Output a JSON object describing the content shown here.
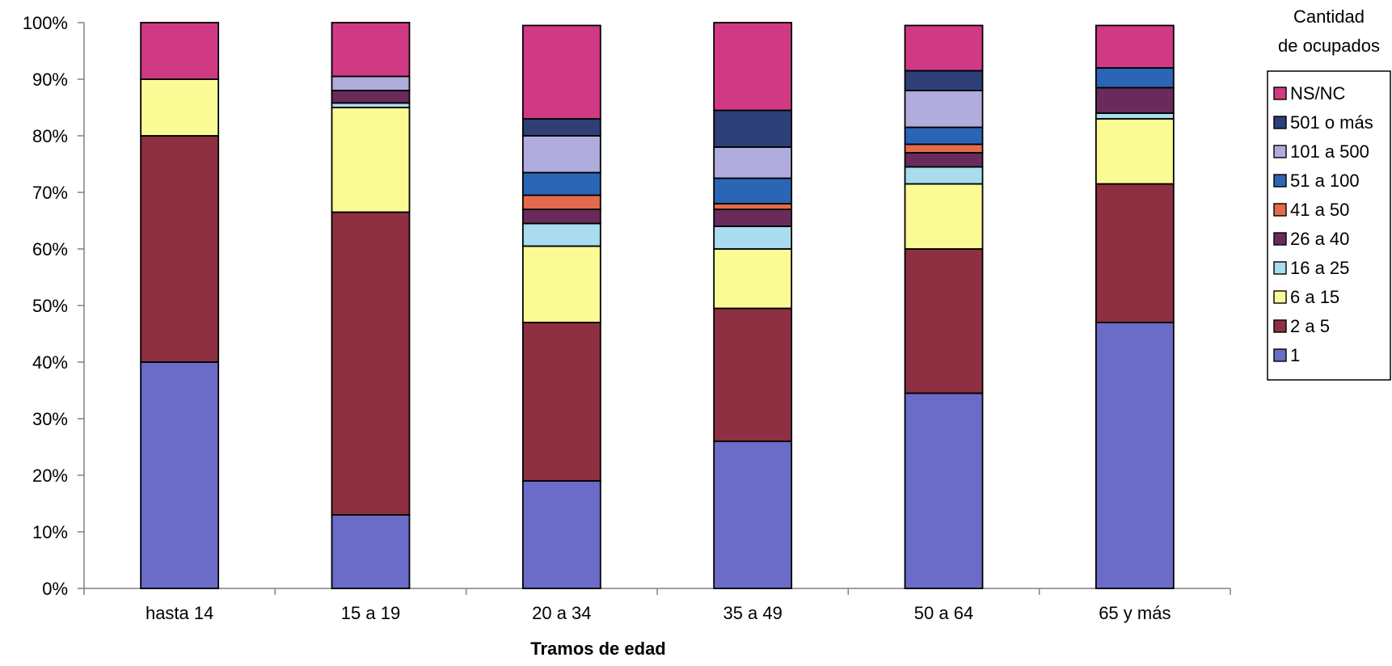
{
  "chart_data": {
    "type": "bar",
    "stacked": true,
    "percent_stacked": true,
    "xlabel": "Tramos de edad",
    "ylabel": "",
    "ylim": [
      0,
      100
    ],
    "yticks": [
      "0%",
      "10%",
      "20%",
      "30%",
      "40%",
      "50%",
      "60%",
      "70%",
      "80%",
      "90%",
      "100%"
    ],
    "categories": [
      "hasta 14",
      "15 a 19",
      "20 a 34",
      "35 a 49",
      "50 a 64",
      "65 y más"
    ],
    "legend_title": "Cantidad de ocupados",
    "legend_position": "right",
    "grid": false,
    "series": [
      {
        "name": "1",
        "color": "#6B6BC8",
        "values": [
          40,
          13,
          19,
          26,
          34.5,
          47
        ]
      },
      {
        "name": "2 a 5",
        "color": "#8E3041",
        "values": [
          40,
          53.5,
          28,
          23.5,
          25.5,
          24.5
        ]
      },
      {
        "name": "6 a 15",
        "color": "#FBFB96",
        "values": [
          10,
          18.5,
          13.5,
          10.5,
          11.5,
          11.5
        ]
      },
      {
        "name": "16 a 25",
        "color": "#A8DCEE",
        "values": [
          0,
          0.8,
          4,
          4,
          3,
          1
        ]
      },
      {
        "name": "26 a 40",
        "color": "#6A2B5C",
        "values": [
          0,
          2.2,
          2.5,
          3,
          2.5,
          4.5
        ]
      },
      {
        "name": "41 a 50",
        "color": "#E36A4C",
        "values": [
          0,
          0,
          2.5,
          1,
          1.5,
          0
        ]
      },
      {
        "name": "51 a 100",
        "color": "#2B66B6",
        "values": [
          0,
          0,
          4,
          4.5,
          3,
          3.5
        ]
      },
      {
        "name": "101 a 500",
        "color": "#B0ACDD",
        "values": [
          0,
          2.5,
          6.5,
          5.5,
          6.5,
          0
        ]
      },
      {
        "name": "501 o más",
        "color": "#2E3F78",
        "values": [
          0,
          0,
          3,
          6.5,
          3.5,
          0
        ]
      },
      {
        "name": "NS/NC",
        "color": "#D03A85",
        "values": [
          10,
          9.5,
          16.5,
          15.5,
          8,
          7.5
        ]
      }
    ]
  }
}
